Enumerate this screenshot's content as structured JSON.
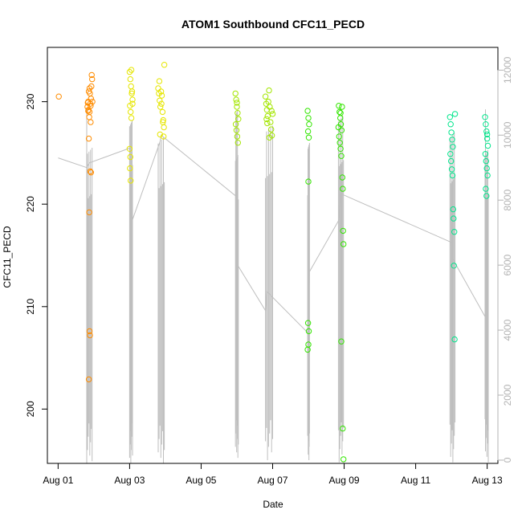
{
  "chart_data": {
    "type": "scatter",
    "title": "ATOM1 Southbound CFC11_PECD",
    "xlabel": "Date",
    "ylabel": "CFC11_PECD",
    "x_range_days": [
      "2016-08-01",
      "2016-08-13"
    ],
    "x_ticks": [
      {
        "label": "Aug 01",
        "day": 1
      },
      {
        "label": "Aug 03",
        "day": 3
      },
      {
        "label": "Aug 05",
        "day": 5
      },
      {
        "label": "Aug 07",
        "day": 7
      },
      {
        "label": "Aug 09",
        "day": 9
      },
      {
        "label": "Aug 11",
        "day": 11
      },
      {
        "label": "Aug 13",
        "day": 13
      }
    ],
    "ylim": [
      194.7,
      235.3
    ],
    "y_ticks": [
      200,
      210,
      220,
      230
    ],
    "y2lim": [
      -100,
      12700
    ],
    "y2_ticks": [
      0,
      2000,
      4000,
      6000,
      8000,
      10000,
      12000
    ],
    "grid": false,
    "series": [
      {
        "color": "#FF8C00",
        "points": [
          [
            1.02,
            230.5
          ],
          [
            1.82,
            229.5
          ],
          [
            1.84,
            230.0
          ],
          [
            1.86,
            231.0
          ],
          [
            1.88,
            229.0
          ],
          [
            1.9,
            229.8
          ],
          [
            1.92,
            230.3
          ],
          [
            1.85,
            229.2
          ],
          [
            1.87,
            228.5
          ],
          [
            1.89,
            230.8
          ],
          [
            1.91,
            228.0
          ],
          [
            1.93,
            231.5
          ],
          [
            1.95,
            232.2
          ],
          [
            1.94,
            232.6
          ],
          [
            1.88,
            231.3
          ],
          [
            1.86,
            226.4
          ],
          [
            1.9,
            223.2
          ],
          [
            1.92,
            223.1
          ],
          [
            1.87,
            219.2
          ],
          [
            1.88,
            207.6
          ],
          [
            1.89,
            207.2
          ],
          [
            1.86,
            202.9
          ],
          [
            1.83,
            229.9
          ],
          [
            1.96,
            230.0
          ],
          [
            1.84,
            229.1
          ],
          [
            1.91,
            229.6
          ]
        ]
      },
      {
        "color": "#E6E600",
        "points": [
          [
            3.0,
            232.9
          ],
          [
            3.02,
            232.2
          ],
          [
            3.04,
            231.5
          ],
          [
            3.06,
            230.8
          ],
          [
            3.08,
            230.2
          ],
          [
            3.01,
            229.6
          ],
          [
            3.03,
            229.0
          ],
          [
            3.05,
            228.4
          ],
          [
            3.07,
            231.0
          ],
          [
            3.0,
            225.4
          ],
          [
            3.02,
            224.6
          ],
          [
            3.01,
            223.5
          ],
          [
            3.03,
            222.3
          ],
          [
            3.05,
            233.1
          ],
          [
            3.08,
            229.8
          ],
          [
            3.8,
            231.3
          ],
          [
            3.82,
            230.8
          ],
          [
            3.84,
            230.1
          ],
          [
            3.86,
            229.5
          ],
          [
            3.88,
            231.0
          ],
          [
            3.9,
            230.6
          ],
          [
            3.92,
            229.0
          ],
          [
            3.94,
            228.2
          ],
          [
            3.96,
            227.5
          ],
          [
            3.85,
            226.8
          ],
          [
            3.95,
            226.6
          ],
          [
            3.97,
            233.6
          ],
          [
            3.83,
            232.0
          ],
          [
            3.89,
            229.8
          ],
          [
            3.93,
            228.0
          ]
        ]
      },
      {
        "color": "#A3E600",
        "points": [
          [
            5.96,
            230.8
          ],
          [
            5.98,
            230.2
          ],
          [
            6.0,
            229.5
          ],
          [
            6.02,
            228.9
          ],
          [
            6.04,
            228.3
          ],
          [
            5.97,
            227.8
          ],
          [
            5.99,
            227.2
          ],
          [
            6.01,
            226.6
          ],
          [
            6.03,
            226.0
          ],
          [
            6.0,
            229.9
          ],
          [
            6.8,
            230.5
          ],
          [
            6.82,
            229.8
          ],
          [
            6.84,
            229.2
          ],
          [
            6.86,
            228.6
          ],
          [
            6.88,
            230.0
          ],
          [
            6.9,
            231.1
          ],
          [
            6.92,
            229.5
          ],
          [
            6.94,
            228.0
          ],
          [
            6.96,
            227.3
          ],
          [
            6.98,
            226.7
          ],
          [
            7.0,
            228.8
          ],
          [
            6.85,
            227.9
          ],
          [
            6.91,
            226.5
          ],
          [
            6.97,
            229.1
          ],
          [
            6.83,
            228.3
          ]
        ]
      },
      {
        "color": "#33E600",
        "points": [
          [
            7.98,
            229.1
          ],
          [
            8.0,
            228.4
          ],
          [
            8.02,
            227.8
          ],
          [
            7.99,
            227.1
          ],
          [
            8.01,
            226.5
          ],
          [
            8.0,
            222.2
          ],
          [
            7.99,
            208.4
          ],
          [
            8.01,
            207.6
          ],
          [
            8.0,
            206.3
          ],
          [
            7.98,
            205.8
          ],
          [
            8.85,
            229.6
          ],
          [
            8.87,
            229.0
          ],
          [
            8.89,
            228.4
          ],
          [
            8.91,
            227.8
          ],
          [
            8.93,
            227.2
          ],
          [
            8.86,
            226.6
          ],
          [
            8.88,
            226.0
          ],
          [
            8.9,
            225.4
          ],
          [
            8.92,
            224.7
          ],
          [
            8.94,
            229.5
          ],
          [
            8.95,
            222.6
          ],
          [
            8.96,
            221.5
          ],
          [
            8.97,
            217.4
          ],
          [
            8.98,
            216.1
          ],
          [
            8.92,
            206.6
          ],
          [
            8.96,
            198.1
          ],
          [
            8.98,
            195.1
          ],
          [
            8.9,
            228.9
          ],
          [
            8.84,
            227.5
          ]
        ]
      },
      {
        "color": "#00E68C",
        "points": [
          [
            11.96,
            228.5
          ],
          [
            11.98,
            227.8
          ],
          [
            12.0,
            227.0
          ],
          [
            12.02,
            226.3
          ],
          [
            12.04,
            225.6
          ],
          [
            11.97,
            224.9
          ],
          [
            11.99,
            224.2
          ],
          [
            12.01,
            223.4
          ],
          [
            12.03,
            222.8
          ],
          [
            12.05,
            219.5
          ],
          [
            12.06,
            218.6
          ],
          [
            12.08,
            217.3
          ],
          [
            12.07,
            214.0
          ],
          [
            12.09,
            206.8
          ],
          [
            12.1,
            228.8
          ],
          [
            12.94,
            228.5
          ],
          [
            12.96,
            227.8
          ],
          [
            12.98,
            227.1
          ],
          [
            13.0,
            226.4
          ],
          [
            13.02,
            225.7
          ],
          [
            12.95,
            224.9
          ],
          [
            12.97,
            224.2
          ],
          [
            12.99,
            223.5
          ],
          [
            13.01,
            222.8
          ],
          [
            12.96,
            221.5
          ],
          [
            12.98,
            220.8
          ],
          [
            13.0,
            226.8
          ]
        ]
      }
    ],
    "line_series": {
      "color": "#BEBEBE",
      "axis": "right",
      "points": [
        [
          1.0,
          9300
        ],
        [
          1.8,
          9000
        ],
        [
          1.85,
          9100
        ],
        [
          1.88,
          9150
        ],
        [
          3.0,
          9600
        ],
        [
          3.03,
          8000
        ],
        [
          3.05,
          7300
        ],
        [
          3.85,
          9800
        ],
        [
          3.88,
          10000
        ],
        [
          6.0,
          8100
        ],
        [
          6.02,
          6000
        ],
        [
          6.8,
          4600
        ],
        [
          6.83,
          5200
        ],
        [
          8.0,
          3900
        ],
        [
          8.03,
          5800
        ],
        [
          8.86,
          7400
        ],
        [
          8.9,
          8200
        ],
        [
          12.0,
          6700
        ],
        [
          12.03,
          6200
        ],
        [
          13.0,
          4300
        ],
        [
          13.03,
          4800
        ]
      ]
    }
  }
}
